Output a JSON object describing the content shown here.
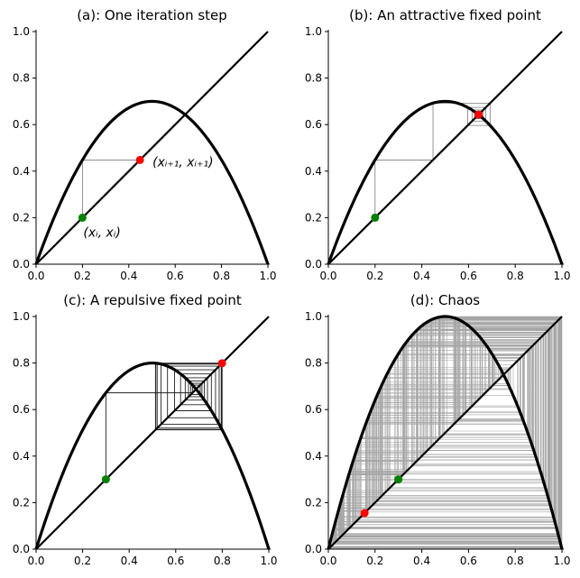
{
  "chart_data": [
    {
      "type": "line",
      "title": "(a): One iteration step",
      "r": 2.8,
      "x0": 0.2,
      "steps": 1,
      "xlim": [
        0,
        1
      ],
      "ylim": [
        0,
        1
      ],
      "xticks": [
        "0.0",
        "0.2",
        "0.4",
        "0.6",
        "0.8",
        "1.0"
      ],
      "yticks": [
        "0.0",
        "0.2",
        "0.4",
        "0.6",
        "0.8",
        "1.0"
      ],
      "start_point": {
        "x": 0.2,
        "y": 0.2,
        "color": "#008000"
      },
      "end_point": {
        "x": 0.448,
        "y": 0.448,
        "color": "#ff0000"
      },
      "annotations": [
        {
          "id": "start",
          "text": "(xᵢ, xᵢ)"
        },
        {
          "id": "end",
          "text": "(xᵢ₊₁, xᵢ₊₁)"
        }
      ],
      "grid": false
    },
    {
      "type": "line",
      "title": "(b): An attractive fixed point",
      "r": 2.8,
      "x0": 0.2,
      "steps": 60,
      "xlim": [
        0,
        1
      ],
      "ylim": [
        0,
        1
      ],
      "xticks": [
        "0.0",
        "0.2",
        "0.4",
        "0.6",
        "0.8",
        "1.0"
      ],
      "yticks": [
        "0.0",
        "0.2",
        "0.4",
        "0.6",
        "0.8",
        "1.0"
      ],
      "start_point": {
        "x": 0.2,
        "y": 0.2,
        "color": "#008000"
      },
      "end_point": {
        "x": 0.643,
        "y": 0.643,
        "color": "#ff0000"
      },
      "annotations": [],
      "grid": false
    },
    {
      "type": "line",
      "title": "(c): A repulsive fixed point",
      "r": 3.2,
      "x0": 0.3,
      "steps": 80,
      "xlim": [
        0,
        1
      ],
      "ylim": [
        0,
        1
      ],
      "xticks": [
        "0.0",
        "0.2",
        "0.4",
        "0.6",
        "0.8",
        "1.0"
      ],
      "yticks": [
        "0.0",
        "0.2",
        "0.4",
        "0.6",
        "0.8",
        "1.0"
      ],
      "start_point": {
        "x": 0.3,
        "y": 0.3,
        "color": "#008000"
      },
      "end_point": {
        "x": 0.799,
        "y": 0.799,
        "color": "#ff0000"
      },
      "annotations": [],
      "grid": false
    },
    {
      "type": "line",
      "title": "(d): Chaos",
      "r": 4.0,
      "x0": 0.3,
      "steps": 400,
      "xlim": [
        0,
        1
      ],
      "ylim": [
        0,
        1
      ],
      "xticks": [
        "0.0",
        "0.2",
        "0.4",
        "0.6",
        "0.8",
        "1.0"
      ],
      "yticks": [
        "0.0",
        "0.2",
        "0.4",
        "0.6",
        "0.8",
        "1.0"
      ],
      "start_point": {
        "x": 0.3,
        "y": 0.3,
        "color": "#008000"
      },
      "end_point": {
        "x": 0.155,
        "y": 0.155,
        "color": "#ff0000"
      },
      "annotations": [],
      "grid": false
    }
  ]
}
